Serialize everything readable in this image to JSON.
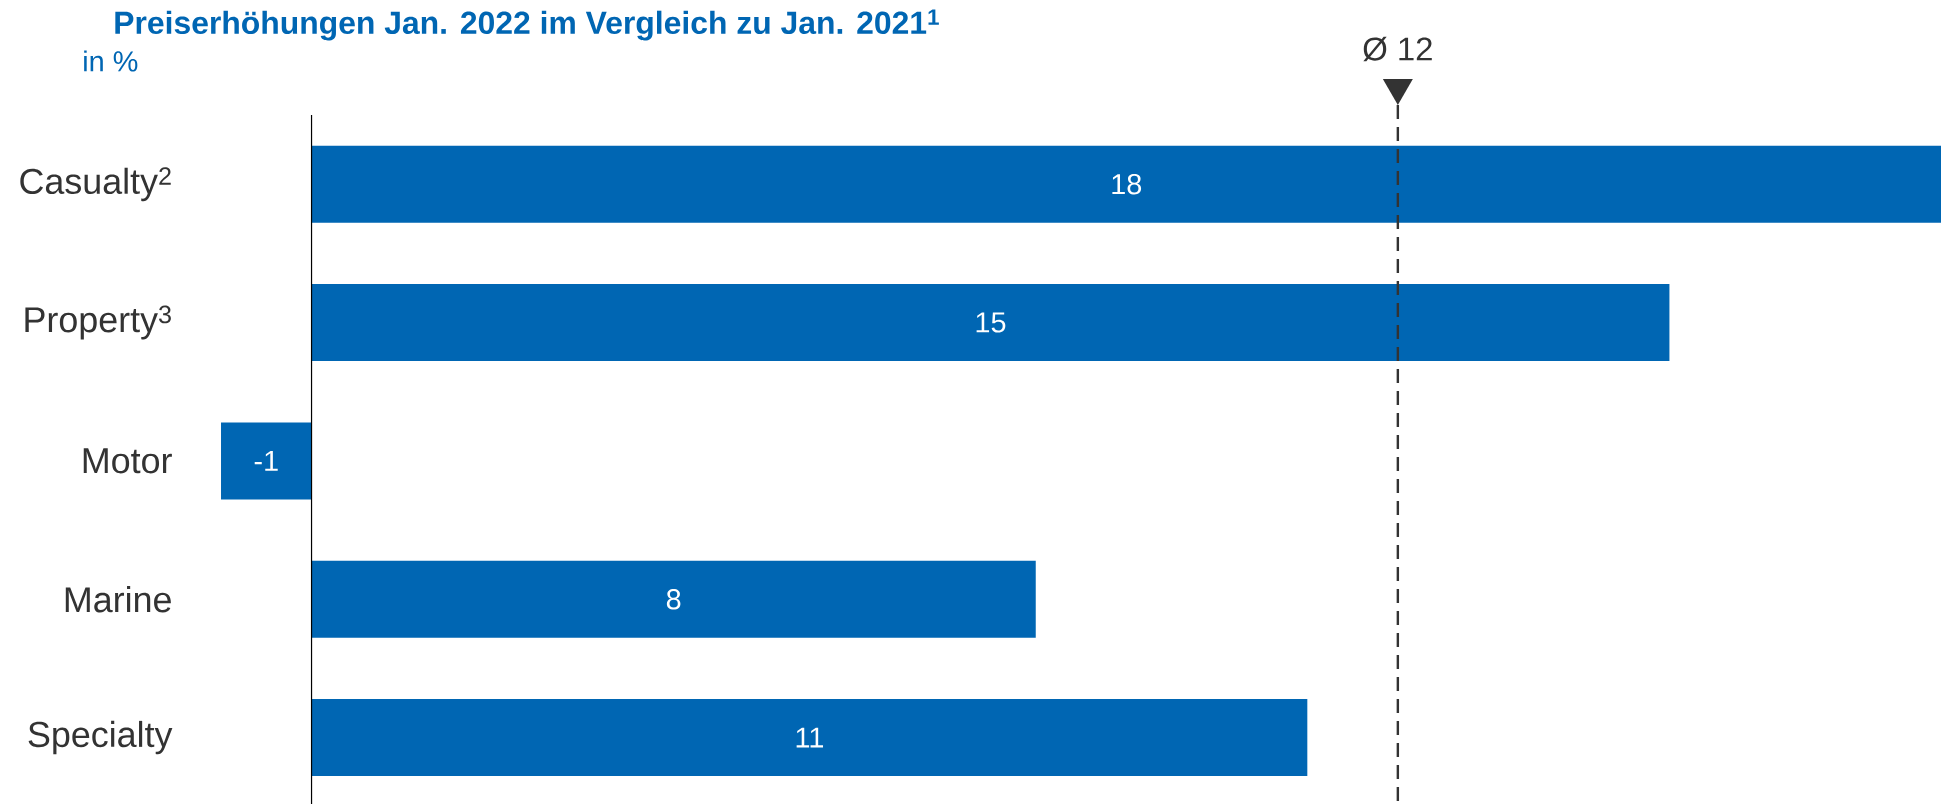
{
  "chart_data": {
    "type": "bar",
    "orientation": "horizontal",
    "title": "Preiserhöhungen Jan. 2022 im Vergleich zu Jan. 2021$^{1}$",
    "subtitle": "in %",
    "categories": [
      "Casualty$^{2}$",
      "Property$^{3}$",
      "Motor",
      "Marine",
      "Specialty"
    ],
    "values": [
      18,
      15,
      -1,
      8,
      11
    ],
    "color": "#0066b3",
    "data_labels": true,
    "ref_lines": [
      {
        "axis": "x",
        "value": 12,
        "label": "Ø 12",
        "color": "#333333",
        "line_style": "dashed"
      }
    ]
  }
}
